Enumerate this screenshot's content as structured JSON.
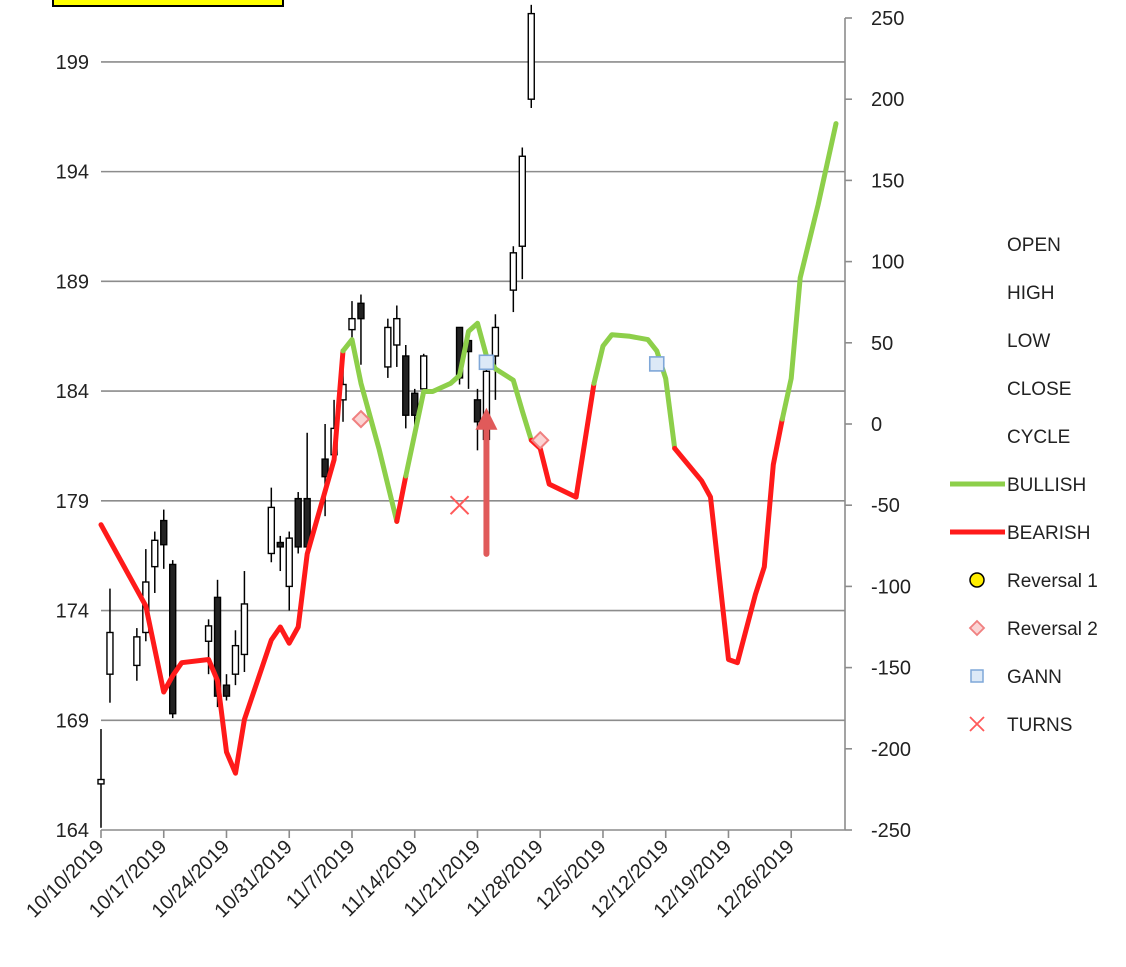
{
  "chart_data": {
    "type": "candlestick",
    "left_axis": {
      "ticks": [
        164,
        169,
        174,
        179,
        184,
        189,
        194,
        199
      ],
      "range": [
        164,
        201
      ]
    },
    "right_axis": {
      "ticks": [
        -250,
        -200,
        -150,
        -100,
        -50,
        0,
        50,
        100,
        150,
        200,
        250
      ],
      "range": [
        -250,
        250
      ]
    },
    "x_axis": {
      "tick_labels": [
        "10/10/2019",
        "10/17/2019",
        "10/24/2019",
        "10/31/2019",
        "11/7/2019",
        "11/14/2019",
        "11/21/2019",
        "11/28/2019",
        "12/5/2019",
        "12/12/2019",
        "12/19/2019",
        "12/26/2019"
      ],
      "start": "2019-10-10",
      "end": "2020-01-01"
    },
    "grid": true,
    "legend_position": "right",
    "legend": [
      {
        "label": "OPEN",
        "marker": "none"
      },
      {
        "label": "HIGH",
        "marker": "none"
      },
      {
        "label": "LOW",
        "marker": "none"
      },
      {
        "label": "CLOSE",
        "marker": "none"
      },
      {
        "label": "CYCLE",
        "marker": "none"
      },
      {
        "label": "BULLISH",
        "marker": "line",
        "color": "#8dcf4a"
      },
      {
        "label": "BEARISH",
        "marker": "line",
        "color": "#ff1a1a"
      },
      {
        "label": "Reversal 1",
        "marker": "circle",
        "color": "#ffee00"
      },
      {
        "label": "Reversal 2",
        "marker": "diamond",
        "color": "#f08080"
      },
      {
        "label": "GANN",
        "marker": "square",
        "color": "#9dc3e6"
      },
      {
        "label": "TURNS",
        "marker": "x",
        "color": "#ff5a5a"
      }
    ],
    "candles": [
      {
        "date": "2019-10-10",
        "open": 166.1,
        "high": 168.6,
        "low": 164.1,
        "close": 166.3
      },
      {
        "date": "2019-10-11",
        "open": 171.1,
        "high": 175.0,
        "low": 169.8,
        "close": 173.0
      },
      {
        "date": "2019-10-14",
        "open": 171.5,
        "high": 173.2,
        "low": 170.8,
        "close": 172.8
      },
      {
        "date": "2019-10-15",
        "open": 173.0,
        "high": 176.8,
        "low": 172.6,
        "close": 175.3
      },
      {
        "date": "2019-10-16",
        "open": 176.0,
        "high": 177.6,
        "low": 174.8,
        "close": 177.2
      },
      {
        "date": "2019-10-17",
        "open": 178.1,
        "high": 178.6,
        "low": 175.9,
        "close": 177.0
      },
      {
        "date": "2019-10-18",
        "open": 176.1,
        "high": 176.3,
        "low": 169.1,
        "close": 169.3
      },
      {
        "date": "2019-10-22",
        "open": 172.6,
        "high": 173.6,
        "low": 171.1,
        "close": 173.3
      },
      {
        "date": "2019-10-23",
        "open": 174.6,
        "high": 175.4,
        "low": 169.6,
        "close": 170.1
      },
      {
        "date": "2019-10-24",
        "open": 170.6,
        "high": 171.1,
        "low": 169.9,
        "close": 170.1
      },
      {
        "date": "2019-10-25",
        "open": 171.1,
        "high": 173.1,
        "low": 170.6,
        "close": 172.4
      },
      {
        "date": "2019-10-26",
        "open": 172.0,
        "high": 175.8,
        "low": 171.2,
        "close": 174.3
      },
      {
        "date": "2019-10-29",
        "open": 176.6,
        "high": 179.6,
        "low": 176.2,
        "close": 178.7
      },
      {
        "date": "2019-10-30",
        "open": 177.1,
        "high": 177.4,
        "low": 175.8,
        "close": 176.9
      },
      {
        "date": "2019-10-31",
        "open": 175.1,
        "high": 177.6,
        "low": 174.0,
        "close": 177.3
      },
      {
        "date": "2019-11-01",
        "open": 179.1,
        "high": 179.4,
        "low": 176.6,
        "close": 176.9
      },
      {
        "date": "2019-11-02",
        "open": 179.1,
        "high": 182.1,
        "low": 176.8,
        "close": 176.9
      },
      {
        "date": "2019-11-04",
        "open": 180.9,
        "high": 182.5,
        "low": 178.3,
        "close": 180.1
      },
      {
        "date": "2019-11-05",
        "open": 181.1,
        "high": 183.6,
        "low": 180.6,
        "close": 182.3
      },
      {
        "date": "2019-11-06",
        "open": 183.6,
        "high": 185.0,
        "low": 182.6,
        "close": 184.3
      },
      {
        "date": "2019-11-07",
        "open": 186.8,
        "high": 188.1,
        "low": 186.2,
        "close": 187.3
      },
      {
        "date": "2019-11-08",
        "open": 188.0,
        "high": 188.4,
        "low": 185.2,
        "close": 187.3
      },
      {
        "date": "2019-11-11",
        "open": 185.1,
        "high": 187.3,
        "low": 184.6,
        "close": 186.9
      },
      {
        "date": "2019-11-12",
        "open": 186.1,
        "high": 187.9,
        "low": 185.1,
        "close": 187.3
      },
      {
        "date": "2019-11-13",
        "open": 185.6,
        "high": 186.1,
        "low": 182.3,
        "close": 182.9
      },
      {
        "date": "2019-11-14",
        "open": 183.9,
        "high": 184.1,
        "low": 182.2,
        "close": 182.9
      },
      {
        "date": "2019-11-15",
        "open": 184.1,
        "high": 185.7,
        "low": 183.8,
        "close": 185.6
      },
      {
        "date": "2019-11-19",
        "open": 186.9,
        "high": 186.9,
        "low": 184.3,
        "close": 184.6
      },
      {
        "date": "2019-11-20",
        "open": 186.3,
        "high": 186.5,
        "low": 184.1,
        "close": 185.8
      },
      {
        "date": "2019-11-21",
        "open": 183.6,
        "high": 184.1,
        "low": 181.3,
        "close": 182.6
      },
      {
        "date": "2019-11-22",
        "open": 181.8,
        "high": 185.6,
        "low": 181.6,
        "close": 184.9
      },
      {
        "date": "2019-11-23",
        "open": 185.6,
        "high": 187.5,
        "low": 183.6,
        "close": 186.9
      },
      {
        "date": "2019-11-25",
        "open": 188.6,
        "high": 190.6,
        "low": 187.6,
        "close": 190.3
      },
      {
        "date": "2019-11-26",
        "open": 190.6,
        "high": 195.1,
        "low": 189.1,
        "close": 194.7
      },
      {
        "date": "2019-11-27",
        "open": 197.3,
        "high": 201.6,
        "low": 196.9,
        "close": 201.2
      }
    ],
    "cycle_points": [
      {
        "date": "2019-10-10",
        "value": -62
      },
      {
        "date": "2019-10-12",
        "value": -82
      },
      {
        "date": "2019-10-15",
        "value": -112
      },
      {
        "date": "2019-10-17",
        "value": -165
      },
      {
        "date": "2019-10-18",
        "value": -155
      },
      {
        "date": "2019-10-19",
        "value": -147
      },
      {
        "date": "2019-10-22",
        "value": -145
      },
      {
        "date": "2019-10-23",
        "value": -158
      },
      {
        "date": "2019-10-24",
        "value": -202
      },
      {
        "date": "2019-10-25",
        "value": -215
      },
      {
        "date": "2019-10-26",
        "value": -182
      },
      {
        "date": "2019-10-29",
        "value": -133
      },
      {
        "date": "2019-10-30",
        "value": -125
      },
      {
        "date": "2019-10-31",
        "value": -135
      },
      {
        "date": "2019-11-01",
        "value": -125
      },
      {
        "date": "2019-11-02",
        "value": -80
      },
      {
        "date": "2019-11-05",
        "value": -22
      },
      {
        "date": "2019-11-06",
        "value": 45
      },
      {
        "date": "2019-11-07",
        "value": 52
      },
      {
        "date": "2019-11-08",
        "value": 25
      },
      {
        "date": "2019-11-10",
        "value": -15
      },
      {
        "date": "2019-11-12",
        "value": -60
      },
      {
        "date": "2019-11-13",
        "value": -32
      },
      {
        "date": "2019-11-15",
        "value": 20
      },
      {
        "date": "2019-11-16",
        "value": 20
      },
      {
        "date": "2019-11-18",
        "value": 25
      },
      {
        "date": "2019-11-19",
        "value": 30
      },
      {
        "date": "2019-11-20",
        "value": 57
      },
      {
        "date": "2019-11-21",
        "value": 62
      },
      {
        "date": "2019-11-22",
        "value": 42
      },
      {
        "date": "2019-11-23",
        "value": 34
      },
      {
        "date": "2019-11-25",
        "value": 27
      },
      {
        "date": "2019-11-26",
        "value": 8
      },
      {
        "date": "2019-11-27",
        "value": -10
      },
      {
        "date": "2019-11-28",
        "value": -15
      },
      {
        "date": "2019-11-29",
        "value": -37
      },
      {
        "date": "2019-12-02",
        "value": -45
      },
      {
        "date": "2019-12-04",
        "value": 25
      },
      {
        "date": "2019-12-05",
        "value": 48
      },
      {
        "date": "2019-12-06",
        "value": 55
      },
      {
        "date": "2019-12-08",
        "value": 54
      },
      {
        "date": "2019-12-10",
        "value": 52
      },
      {
        "date": "2019-12-11",
        "value": 45
      },
      {
        "date": "2019-12-12",
        "value": 28
      },
      {
        "date": "2019-12-13",
        "value": -15
      },
      {
        "date": "2019-12-16",
        "value": -35
      },
      {
        "date": "2019-12-17",
        "value": -45
      },
      {
        "date": "2019-12-18",
        "value": -95
      },
      {
        "date": "2019-12-19",
        "value": -145
      },
      {
        "date": "2019-12-20",
        "value": -147
      },
      {
        "date": "2019-12-22",
        "value": -105
      },
      {
        "date": "2019-12-23",
        "value": -88
      },
      {
        "date": "2019-12-24",
        "value": -25
      },
      {
        "date": "2019-12-25",
        "value": 3
      },
      {
        "date": "2019-12-26",
        "value": 28
      },
      {
        "date": "2019-12-27",
        "value": 90
      },
      {
        "date": "2019-12-29",
        "value": 135
      },
      {
        "date": "2019-12-31",
        "value": 185
      }
    ],
    "cycle_segments": [
      {
        "type": "bearish",
        "from": "2019-10-10",
        "to": "2019-11-06"
      },
      {
        "type": "bullish",
        "from": "2019-11-06",
        "to": "2019-11-12"
      },
      {
        "type": "bearish",
        "from": "2019-11-12",
        "to": "2019-11-13"
      },
      {
        "type": "bullish",
        "from": "2019-11-13",
        "to": "2019-11-27"
      },
      {
        "type": "bearish",
        "from": "2019-11-27",
        "to": "2019-12-04"
      },
      {
        "type": "bullish",
        "from": "2019-12-04",
        "to": "2019-12-13"
      },
      {
        "type": "bearish",
        "from": "2019-12-13",
        "to": "2019-12-25"
      },
      {
        "type": "bullish",
        "from": "2019-12-25",
        "to": "2019-12-31"
      }
    ],
    "reversal_2": [
      {
        "date": "2019-11-08",
        "value": 3
      },
      {
        "date": "2019-11-28",
        "value": -10
      }
    ],
    "gann": [
      {
        "date": "2019-11-22",
        "value": 38
      },
      {
        "date": "2019-12-11",
        "value": 37
      }
    ],
    "turns": [
      {
        "date": "2019-11-19",
        "value": -50
      }
    ],
    "annotation_arrow": {
      "date": "2019-11-22",
      "from_value": -80,
      "to_value": 10,
      "color": "#e05a5a"
    }
  }
}
